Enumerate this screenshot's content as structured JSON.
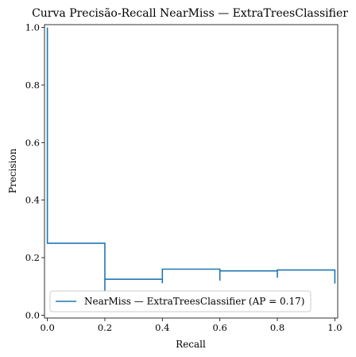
{
  "chart_data": {
    "type": "line",
    "title": "Curva Precisão-Recall NearMiss — ExtraTreesClassifier",
    "xlabel": "Recall",
    "ylabel": "Precision",
    "xlim": [
      -0.01,
      1.01
    ],
    "ylim": [
      -0.01,
      1.01
    ],
    "xticks": [
      0.0,
      0.2,
      0.4,
      0.6,
      0.8,
      1.0
    ],
    "xtick_labels": [
      "0.0",
      "0.2",
      "0.4",
      "0.6",
      "0.8",
      "1.0"
    ],
    "yticks": [
      0.0,
      0.2,
      0.4,
      0.6,
      0.8,
      1.0
    ],
    "ytick_labels": [
      "0.0",
      "0.2",
      "0.4",
      "0.6",
      "0.8",
      "1.0"
    ],
    "grid": false,
    "legend": {
      "placement": "bottom-left",
      "entries": [
        "NearMiss — ExtraTreesClassifier (AP = 0.17)"
      ]
    },
    "series": [
      {
        "name": "NearMiss — ExtraTreesClassifier (AP = 0.17)",
        "color": "#1f77b4",
        "drawstyle": "steps-post",
        "recall": [
          0.0,
          0.0,
          0.2,
          0.2,
          0.2,
          0.4,
          0.4,
          0.4,
          0.6,
          0.6,
          0.6,
          0.8,
          0.8,
          0.8,
          1.0,
          1.0
        ],
        "precision": [
          1.0,
          0.25,
          0.25,
          0.083,
          0.125,
          0.125,
          0.111,
          0.16,
          0.16,
          0.12,
          0.154,
          0.154,
          0.13,
          0.157,
          0.157,
          0.11
        ]
      }
    ]
  }
}
